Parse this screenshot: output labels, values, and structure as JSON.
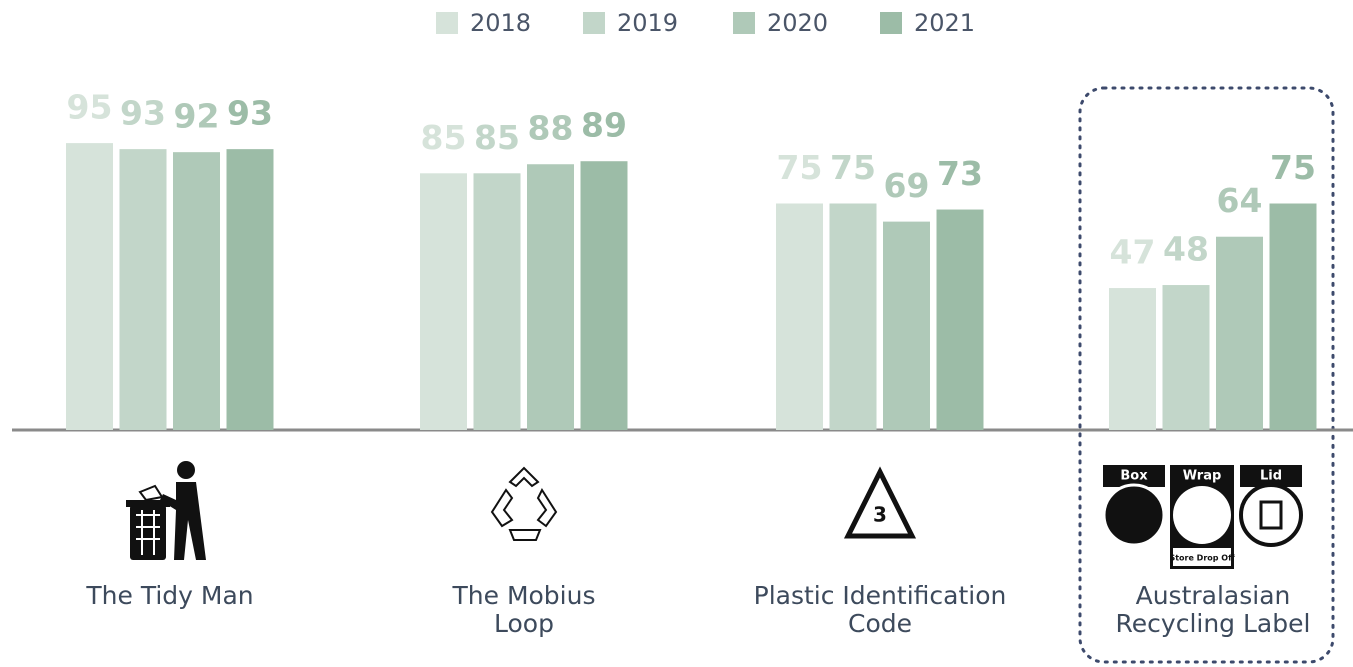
{
  "chart_data": {
    "type": "bar",
    "categories": [
      "The Tidy Man",
      "The Mobius Loop",
      "Plastic Identification Code",
      "Australasian Recycling Label"
    ],
    "series": [
      {
        "name": "2018",
        "color": "#d6e3da",
        "values": [
          95,
          85,
          75,
          47
        ]
      },
      {
        "name": "2019",
        "color": "#c2d6c9",
        "values": [
          93,
          85,
          75,
          48
        ]
      },
      {
        "name": "2020",
        "color": "#afc9b8",
        "values": [
          92,
          88,
          69,
          64
        ]
      },
      {
        "name": "2021",
        "color": "#9cbca7",
        "values": [
          93,
          89,
          73,
          75
        ]
      }
    ],
    "legend": "top",
    "annotations": [
      "3",
      "Box",
      "Wrap",
      "Lid",
      "Store Drop Off"
    ]
  }
}
